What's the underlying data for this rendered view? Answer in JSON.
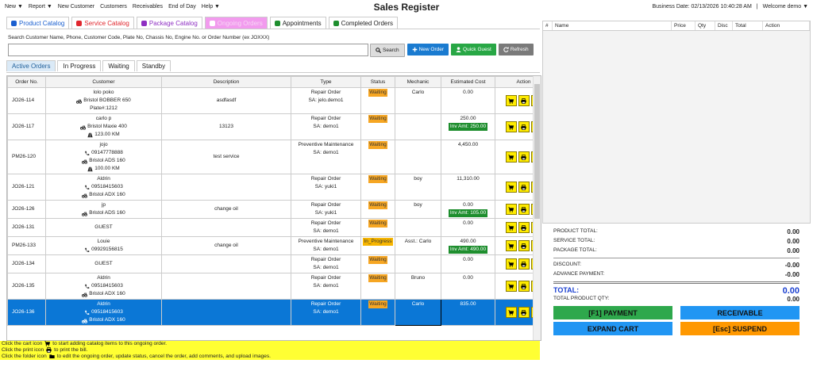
{
  "menu": [
    "New ▼",
    "Report ▼",
    "New Customer",
    "Customers",
    "Receivables",
    "End of Day",
    "Help ▼"
  ],
  "title": "Sales Register",
  "business_date": "Business Date: 02/13/2026 10:40:28 AM",
  "separator": "|",
  "welcome": "Welcome demo ▼",
  "tabs": [
    "Product Catalog",
    "Service Catalog",
    "Package Catalog",
    "Ongoing Orders",
    "Appointments",
    "Completed Orders"
  ],
  "search": {
    "label": "Search Customer Name, Phone, Customer Code, Plate No, Chassis No, Engine No. or Order Number (ex JOXXX)",
    "buttons": [
      "Search",
      "New Order",
      "Quick Guest",
      "Refresh"
    ]
  },
  "order_tabs": [
    "Active Orders",
    "In Progress",
    "Waiting",
    "Standby"
  ],
  "table": {
    "columns": [
      "Order No.",
      "Customer",
      "Description",
      "Type",
      "Status",
      "Mechanic",
      "Estimated Cost",
      "Action"
    ],
    "rows": [
      {
        "order": "JO26-114",
        "customer": [
          "lolo poko",
          "Bristol BOBBER 650",
          "Plate#:1212"
        ],
        "description": "asdfasdf",
        "type": [
          "Repair Order",
          "SA: jelo.demo1"
        ],
        "status": "Waiting",
        "mechanic": "Carlo",
        "cost": "0.00"
      },
      {
        "order": "JO26-117",
        "customer": [
          "carlo p",
          "Bristol Maxie 400",
          "123.00 KM"
        ],
        "description": "13123",
        "type": [
          "Repair Order",
          "SA: demo1"
        ],
        "status": "Waiting",
        "cost": "250.00",
        "inv_amt": "Inv Amt: 250.00"
      },
      {
        "order": "PM26-120",
        "customer": [
          "jojo",
          "09147778888",
          "Bristol ADS 160",
          "100.00 KM"
        ],
        "description": "test service",
        "type": [
          "Preventive Maintenance",
          "SA: demo1"
        ],
        "status": "Waiting",
        "cost": "4,450.00"
      },
      {
        "order": "JO26-121",
        "customer": [
          "Aldrin",
          "09518415603",
          "Bristol ADX 160"
        ],
        "type": [
          "Repair Order",
          "SA: yuki1"
        ],
        "status": "Waiting",
        "mechanic": "boy",
        "cost": "11,310.00"
      },
      {
        "order": "JO26-126",
        "customer": [
          "jp",
          "Bristol ADS 160"
        ],
        "description": "change oil",
        "type": [
          "Repair Order",
          "SA: yuki1"
        ],
        "status": "Waiting",
        "mechanic": "boy",
        "cost": "0.00",
        "inv_amt": "Inv Amt: 105.00"
      },
      {
        "order": "JO26-131",
        "customer": [
          "GUEST"
        ],
        "type": [
          "Repair Order",
          "SA: demo1"
        ],
        "status": "Waiting",
        "cost": "0.00"
      },
      {
        "order": "PM26-133",
        "customer": [
          "Louie",
          "09929156815"
        ],
        "description": "change oil",
        "type": [
          "Preventive Maintenance",
          "SA: demo1"
        ],
        "status": "In_Progress",
        "mechanic": "Asst.: Carlo",
        "cost": "490.00",
        "inv_amt": "Inv Amt: 490.00"
      },
      {
        "order": "JO26-134",
        "customer": [
          "GUEST"
        ],
        "type": [
          "Repair Order",
          "SA: demo1"
        ],
        "status": "Waiting",
        "cost": "0.00"
      },
      {
        "order": "JO26-135",
        "customer": [
          "Aldrin",
          "09518415603",
          "Bristol ADX 160"
        ],
        "type": [
          "Repair Order",
          "SA: demo1"
        ],
        "status": "Waiting",
        "mechanic": "Bruno",
        "cost": "0.00"
      },
      {
        "order": "JO26-136",
        "customer": [
          "Aldrin",
          "09518415603",
          "Bristol ADX 160"
        ],
        "type": [
          "Repair Order",
          "SA: demo1"
        ],
        "status": "Waiting",
        "mechanic": "Carlo",
        "cost": "835.00"
      }
    ]
  },
  "notes": [
    [
      "Click the cart icon",
      "to start adding catalog items to this ongoing order."
    ],
    [
      "Click the print icon",
      "to print the bill."
    ],
    [
      "Click the folder icon",
      "to edit the ongoing order, update status, cancel the order, add comments, and upload images."
    ]
  ],
  "cart": {
    "columns": [
      "#",
      "Name",
      "Price",
      "Qty",
      "Disc",
      "Total",
      "Action"
    ]
  },
  "totals": {
    "subtotals": [
      [
        "PRODUCT TOTAL:",
        "0.00"
      ],
      [
        "SERVICE TOTAL:",
        "0.00"
      ],
      [
        "PACKAGE TOTAL:",
        "0.00"
      ]
    ],
    "deductions": [
      [
        "DISCOUNT:",
        "-0.00"
      ],
      [
        "ADVANCE PAYMENT:",
        "-0.00"
      ]
    ],
    "total": [
      "TOTAL:",
      "0.00"
    ],
    "qty": [
      "TOTAL PRODUCT QTY:",
      "0.00"
    ]
  },
  "actions": [
    "[F1] PAYMENT",
    "RECEIVABLE",
    "EXPAND CART",
    "[Esc] SUSPEND"
  ]
}
